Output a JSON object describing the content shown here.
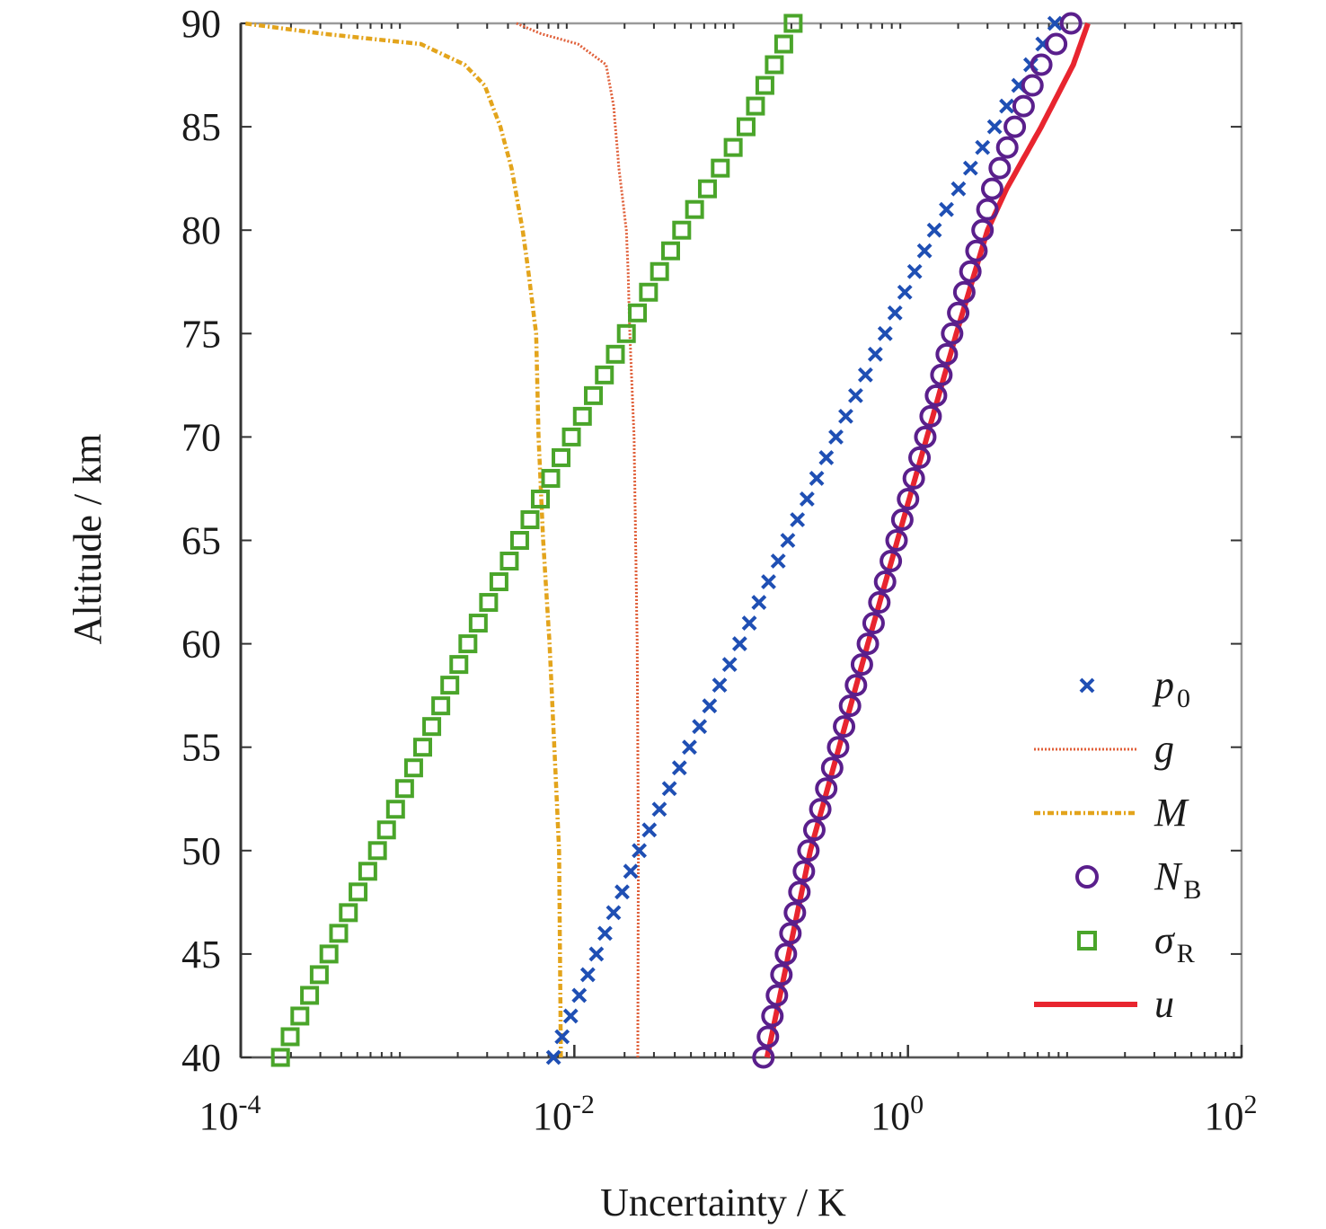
{
  "chart_data": {
    "type": "line",
    "title": "",
    "xlabel": "Uncertainty / K",
    "ylabel": "Altitude / km",
    "xscale": "log",
    "xlim": [
      0.0001,
      100
    ],
    "ylim": [
      40,
      90
    ],
    "grid": false,
    "legend_position": "lower-right",
    "x_ticks": [
      {
        "value": 0.0001,
        "base": "10",
        "exp": "-4"
      },
      {
        "value": 0.01,
        "base": "10",
        "exp": "-2"
      },
      {
        "value": 1,
        "base": "10",
        "exp": "0"
      },
      {
        "value": 100,
        "base": "10",
        "exp": "2"
      }
    ],
    "y_ticks": [
      40,
      45,
      50,
      55,
      60,
      65,
      70,
      75,
      80,
      85,
      90
    ],
    "series": [
      {
        "name": "p0",
        "label_main": "p",
        "label_sub": "0",
        "style": "marker-x",
        "color": "#1f4fb4",
        "altitude": [
          40,
          50,
          60,
          70,
          80,
          90
        ],
        "values": [
          0.0075,
          0.0245,
          0.098,
          0.37,
          1.44,
          7.6
        ],
        "marker_step_km": 1
      },
      {
        "name": "g",
        "label_main": "g",
        "label_sub": "",
        "style": "dotted-line",
        "color": "#e0603a",
        "altitude": [
          40,
          50,
          60,
          70,
          75,
          78,
          80,
          83,
          86,
          88,
          89,
          89.5,
          90
        ],
        "values": [
          0.024,
          0.0242,
          0.0238,
          0.0228,
          0.0215,
          0.021,
          0.0205,
          0.0185,
          0.0172,
          0.0155,
          0.0105,
          0.0063,
          0.0045
        ]
      },
      {
        "name": "M",
        "label_main": "M",
        "label_sub": "",
        "style": "dash-dot-line",
        "color": "#e3a41c",
        "altitude": [
          40,
          50,
          60,
          65,
          70,
          75,
          78,
          80,
          83,
          85,
          87,
          88,
          89,
          89.5,
          90
        ],
        "values": [
          0.0083,
          0.0081,
          0.0071,
          0.0065,
          0.0061,
          0.0059,
          0.0053,
          0.0049,
          0.0042,
          0.0036,
          0.0029,
          0.0022,
          0.0012,
          0.00031,
          0.000105
        ]
      },
      {
        "name": "NB",
        "label_main": "N",
        "label_sub": "B",
        "style": "marker-circle",
        "color": "#5a1f8c",
        "altitude": [
          40,
          50,
          60,
          70,
          75,
          80,
          82,
          85,
          88,
          90
        ],
        "values": [
          0.136,
          0.253,
          0.575,
          1.27,
          1.84,
          2.8,
          3.2,
          4.37,
          6.3,
          9.5
        ],
        "marker_step_km": 1
      },
      {
        "name": "sigmaR",
        "label_main": "σ",
        "label_sub": "R",
        "style": "marker-square",
        "color": "#4aa52a",
        "altitude": [
          40,
          50,
          60,
          70,
          75,
          80,
          85,
          90
        ],
        "values": [
          0.000173,
          0.00066,
          0.0023,
          0.0096,
          0.0205,
          0.044,
          0.107,
          0.205
        ],
        "marker_step_km": 1
      },
      {
        "name": "u",
        "label_main": "u",
        "label_sub": "",
        "style": "solid-line",
        "color": "#e8252f",
        "altitude": [
          40,
          50,
          60,
          70,
          75,
          80,
          82,
          85,
          88,
          90
        ],
        "values": [
          0.143,
          0.26,
          0.575,
          1.3,
          1.95,
          3.0,
          3.9,
          6.3,
          9.8,
          12
        ]
      }
    ]
  }
}
